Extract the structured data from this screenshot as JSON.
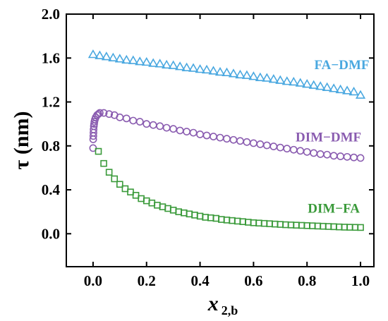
{
  "chart_data": {
    "type": "scatter",
    "title": "",
    "xlabel": {
      "main": "x",
      "subscript": "2,b"
    },
    "ylabel": "τ (nm)",
    "xlim": [
      -0.1,
      1.05
    ],
    "ylim": [
      -0.3,
      2.0
    ],
    "x_ticks": [
      "0.0",
      "0.2",
      "0.4",
      "0.6",
      "0.8",
      "1.0"
    ],
    "y_ticks": [
      "0.0",
      "0.4",
      "0.8",
      "1.2",
      "1.6",
      "2.0"
    ],
    "grid": false,
    "series": [
      {
        "name": "FA−DMF",
        "marker": "triangle-open",
        "color": "#4aa8e0",
        "x": [
          0.0,
          0.025,
          0.05,
          0.075,
          0.1,
          0.125,
          0.15,
          0.175,
          0.2,
          0.225,
          0.25,
          0.275,
          0.3,
          0.325,
          0.35,
          0.375,
          0.4,
          0.425,
          0.45,
          0.475,
          0.5,
          0.525,
          0.55,
          0.575,
          0.6,
          0.625,
          0.65,
          0.675,
          0.7,
          0.725,
          0.75,
          0.775,
          0.8,
          0.825,
          0.85,
          0.875,
          0.9,
          0.925,
          0.95,
          0.975,
          1.0
        ],
        "y": [
          1.63,
          1.62,
          1.61,
          1.6,
          1.59,
          1.58,
          1.575,
          1.565,
          1.56,
          1.55,
          1.545,
          1.535,
          1.53,
          1.52,
          1.51,
          1.505,
          1.495,
          1.49,
          1.48,
          1.47,
          1.465,
          1.455,
          1.445,
          1.44,
          1.43,
          1.42,
          1.415,
          1.405,
          1.395,
          1.385,
          1.38,
          1.37,
          1.36,
          1.35,
          1.34,
          1.33,
          1.32,
          1.31,
          1.3,
          1.29,
          1.26
        ]
      },
      {
        "name": "DIM−DMF",
        "marker": "circle-open",
        "color": "#8a5cb0",
        "x": [
          0.0,
          0.0005,
          0.001,
          0.0015,
          0.002,
          0.003,
          0.004,
          0.005,
          0.007,
          0.01,
          0.015,
          0.02,
          0.025,
          0.04,
          0.06,
          0.08,
          0.1,
          0.125,
          0.15,
          0.175,
          0.2,
          0.225,
          0.25,
          0.275,
          0.3,
          0.325,
          0.35,
          0.375,
          0.4,
          0.425,
          0.45,
          0.475,
          0.5,
          0.525,
          0.55,
          0.575,
          0.6,
          0.625,
          0.65,
          0.675,
          0.7,
          0.725,
          0.75,
          0.775,
          0.8,
          0.825,
          0.85,
          0.875,
          0.9,
          0.925,
          0.95,
          0.975,
          1.0
        ],
        "y": [
          0.78,
          0.86,
          0.89,
          0.92,
          0.95,
          0.98,
          1.0,
          1.02,
          1.04,
          1.06,
          1.08,
          1.09,
          1.1,
          1.1,
          1.09,
          1.08,
          1.06,
          1.05,
          1.03,
          1.02,
          1.0,
          0.99,
          0.98,
          0.965,
          0.955,
          0.94,
          0.93,
          0.92,
          0.905,
          0.895,
          0.885,
          0.875,
          0.865,
          0.855,
          0.845,
          0.835,
          0.825,
          0.815,
          0.805,
          0.795,
          0.785,
          0.775,
          0.765,
          0.755,
          0.745,
          0.735,
          0.725,
          0.72,
          0.71,
          0.705,
          0.7,
          0.695,
          0.69
        ]
      },
      {
        "name": "DIM−FA",
        "marker": "square-open",
        "color": "#3a9a3a",
        "x": [
          0.02,
          0.04,
          0.06,
          0.08,
          0.1,
          0.12,
          0.14,
          0.16,
          0.18,
          0.2,
          0.22,
          0.24,
          0.26,
          0.28,
          0.3,
          0.32,
          0.34,
          0.36,
          0.38,
          0.4,
          0.42,
          0.44,
          0.46,
          0.48,
          0.5,
          0.52,
          0.54,
          0.56,
          0.58,
          0.6,
          0.62,
          0.64,
          0.66,
          0.68,
          0.7,
          0.72,
          0.74,
          0.76,
          0.78,
          0.8,
          0.82,
          0.84,
          0.86,
          0.88,
          0.9,
          0.92,
          0.94,
          0.96,
          0.98,
          1.0
        ],
        "y": [
          0.75,
          0.64,
          0.56,
          0.5,
          0.45,
          0.41,
          0.38,
          0.35,
          0.32,
          0.3,
          0.28,
          0.26,
          0.245,
          0.23,
          0.215,
          0.2,
          0.19,
          0.18,
          0.17,
          0.16,
          0.15,
          0.145,
          0.14,
          0.13,
          0.125,
          0.12,
          0.115,
          0.11,
          0.105,
          0.1,
          0.097,
          0.094,
          0.091,
          0.088,
          0.085,
          0.082,
          0.08,
          0.078,
          0.076,
          0.074,
          0.072,
          0.07,
          0.068,
          0.066,
          0.064,
          0.062,
          0.06,
          0.059,
          0.058,
          0.057
        ]
      }
    ]
  }
}
